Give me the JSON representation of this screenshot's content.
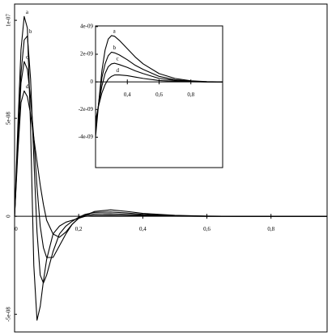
{
  "chart_data": [
    {
      "type": "line",
      "x": [
        0,
        0.01,
        0.02,
        0.03,
        0.04,
        0.05,
        0.06,
        0.07,
        0.08,
        0.09,
        0.1,
        0.12,
        0.14,
        0.16,
        0.18,
        0.2,
        0.22,
        0.25,
        0.3,
        0.35,
        0.4,
        0.5,
        0.6,
        0.7,
        0.8,
        0.9,
        0.975
      ],
      "series": [
        {
          "name": "a",
          "color": "#000000",
          "values": [
            0,
            4.5e-08,
            8.5e-08,
            1.02e-07,
            9.6e-08,
            4.5e-08,
            -2.5e-08,
            -5.3e-08,
            -4.6e-08,
            -3.3e-08,
            -2.2e-08,
            -9e-09,
            -5e-09,
            -3e-09,
            -2e-09,
            -1e-09,
            5e-10,
            2.5e-09,
            3.3e-09,
            2.5e-09,
            1.5e-09,
            5e-10,
            1e-10,
            0,
            0,
            0,
            0
          ]
        },
        {
          "name": "b",
          "color": "#000000",
          "values": [
            0,
            3.8e-08,
            7.3e-08,
            9e-08,
            9.2e-08,
            7e-08,
            3e-08,
            -8e-09,
            -3e-08,
            -3.4e-08,
            -3e-08,
            -1.8e-08,
            -9e-09,
            -5e-09,
            -2.5e-09,
            -5e-10,
            1e-09,
            2e-09,
            2.2e-09,
            1.7e-09,
            1e-09,
            3e-10,
            1e-10,
            0,
            0,
            0,
            0
          ]
        },
        {
          "name": "c",
          "color": "#000000",
          "values": [
            0,
            3.5e-08,
            6.8e-08,
            7.9e-08,
            7.5e-08,
            6e-08,
            4e-08,
            1.5e-08,
            -5e-09,
            -1.6e-08,
            -2.1e-08,
            -2.1e-08,
            -1.5e-08,
            -9e-09,
            -4e-09,
            -1e-09,
            5e-10,
            1.2e-09,
            1.3e-09,
            1e-09,
            6e-10,
            2e-10,
            0,
            0,
            0,
            0,
            0
          ]
        },
        {
          "name": "d",
          "color": "#000000",
          "values": [
            0,
            3.2e-08,
            5.8e-08,
            6.4e-08,
            6.1e-08,
            5.2e-08,
            4e-08,
            2.8e-08,
            1.6e-08,
            6e-09,
            -2e-09,
            -9e-09,
            -1.07e-08,
            -8e-09,
            -4e-09,
            -1e-09,
            0,
            4e-10,
            5e-10,
            4e-10,
            3e-10,
            1e-10,
            0,
            0,
            0,
            0,
            0
          ]
        }
      ],
      "xlim": [
        0,
        0.975
      ],
      "ylim": [
        -5.9e-08,
        1.083e-07
      ],
      "xticks": [
        0,
        {
          "value": 0.2,
          "label": "0,2"
        },
        {
          "value": 0.4,
          "label": "0,4"
        },
        {
          "value": 0.6,
          "label": "0,6"
        },
        {
          "value": 0.8,
          "label": "0,8"
        }
      ],
      "yticks": [
        {
          "value": 1e-07,
          "label": "1e-07"
        },
        {
          "value": 5e-08,
          "label": "5e-08"
        },
        0,
        {
          "value": -5e-08,
          "label": "-5e-08"
        }
      ]
    },
    {
      "type": "line",
      "x": [
        0.2,
        0.22,
        0.24,
        0.26,
        0.28,
        0.3,
        0.32,
        0.35,
        0.4,
        0.45,
        0.5,
        0.6,
        0.7,
        0.8,
        0.9,
        1.0
      ],
      "series": [
        {
          "name": "a",
          "color": "#000000",
          "values": [
            -4e-09,
            -1.5e-09,
            8e-10,
            2.3e-09,
            3.1e-09,
            3.35e-09,
            3.3e-09,
            3e-09,
            2.4e-09,
            1.8e-09,
            1.3e-09,
            6e-10,
            2.5e-10,
            8e-11,
            2e-11,
            0
          ]
        },
        {
          "name": "b",
          "color": "#000000",
          "values": [
            -3.5e-09,
            -1.5e-09,
            3e-10,
            1.3e-09,
            1.9e-09,
            2.15e-09,
            2.1e-09,
            1.95e-09,
            1.6e-09,
            1.2e-09,
            9e-10,
            4e-10,
            1.5e-10,
            5e-11,
            1e-11,
            0
          ]
        },
        {
          "name": "c",
          "color": "#000000",
          "values": [
            -3e-09,
            -1.6e-09,
            -3e-10,
            6e-10,
            1.1e-09,
            1.3e-09,
            1.35e-09,
            1.25e-09,
            1.05e-09,
            8e-10,
            6e-10,
            2.5e-10,
            1e-10,
            3e-11,
            0,
            0
          ]
        },
        {
          "name": "d",
          "color": "#000000",
          "values": [
            -2.8e-09,
            -1.7e-09,
            -8e-10,
            -2e-10,
            2e-10,
            4e-10,
            5e-10,
            5e-10,
            4.5e-10,
            3.5e-10,
            2.5e-10,
            1e-10,
            4e-11,
            1e-11,
            0,
            0
          ]
        }
      ],
      "xlim": [
        0.2,
        1.0
      ],
      "ylim": [
        -6.2e-09,
        4.05e-09
      ],
      "xticks": [
        {
          "value": 0.4,
          "label": "0,4"
        },
        {
          "value": 0.6,
          "label": "0,6"
        },
        {
          "value": 0.8,
          "label": "0,8"
        }
      ],
      "yticks": [
        {
          "value": 4e-09,
          "label": "4e-09"
        },
        {
          "value": 2e-09,
          "label": "2e-09"
        },
        0,
        {
          "value": -2e-09,
          "label": "-2e-09"
        },
        {
          "value": -4e-09,
          "label": "-4e-09"
        }
      ]
    }
  ]
}
